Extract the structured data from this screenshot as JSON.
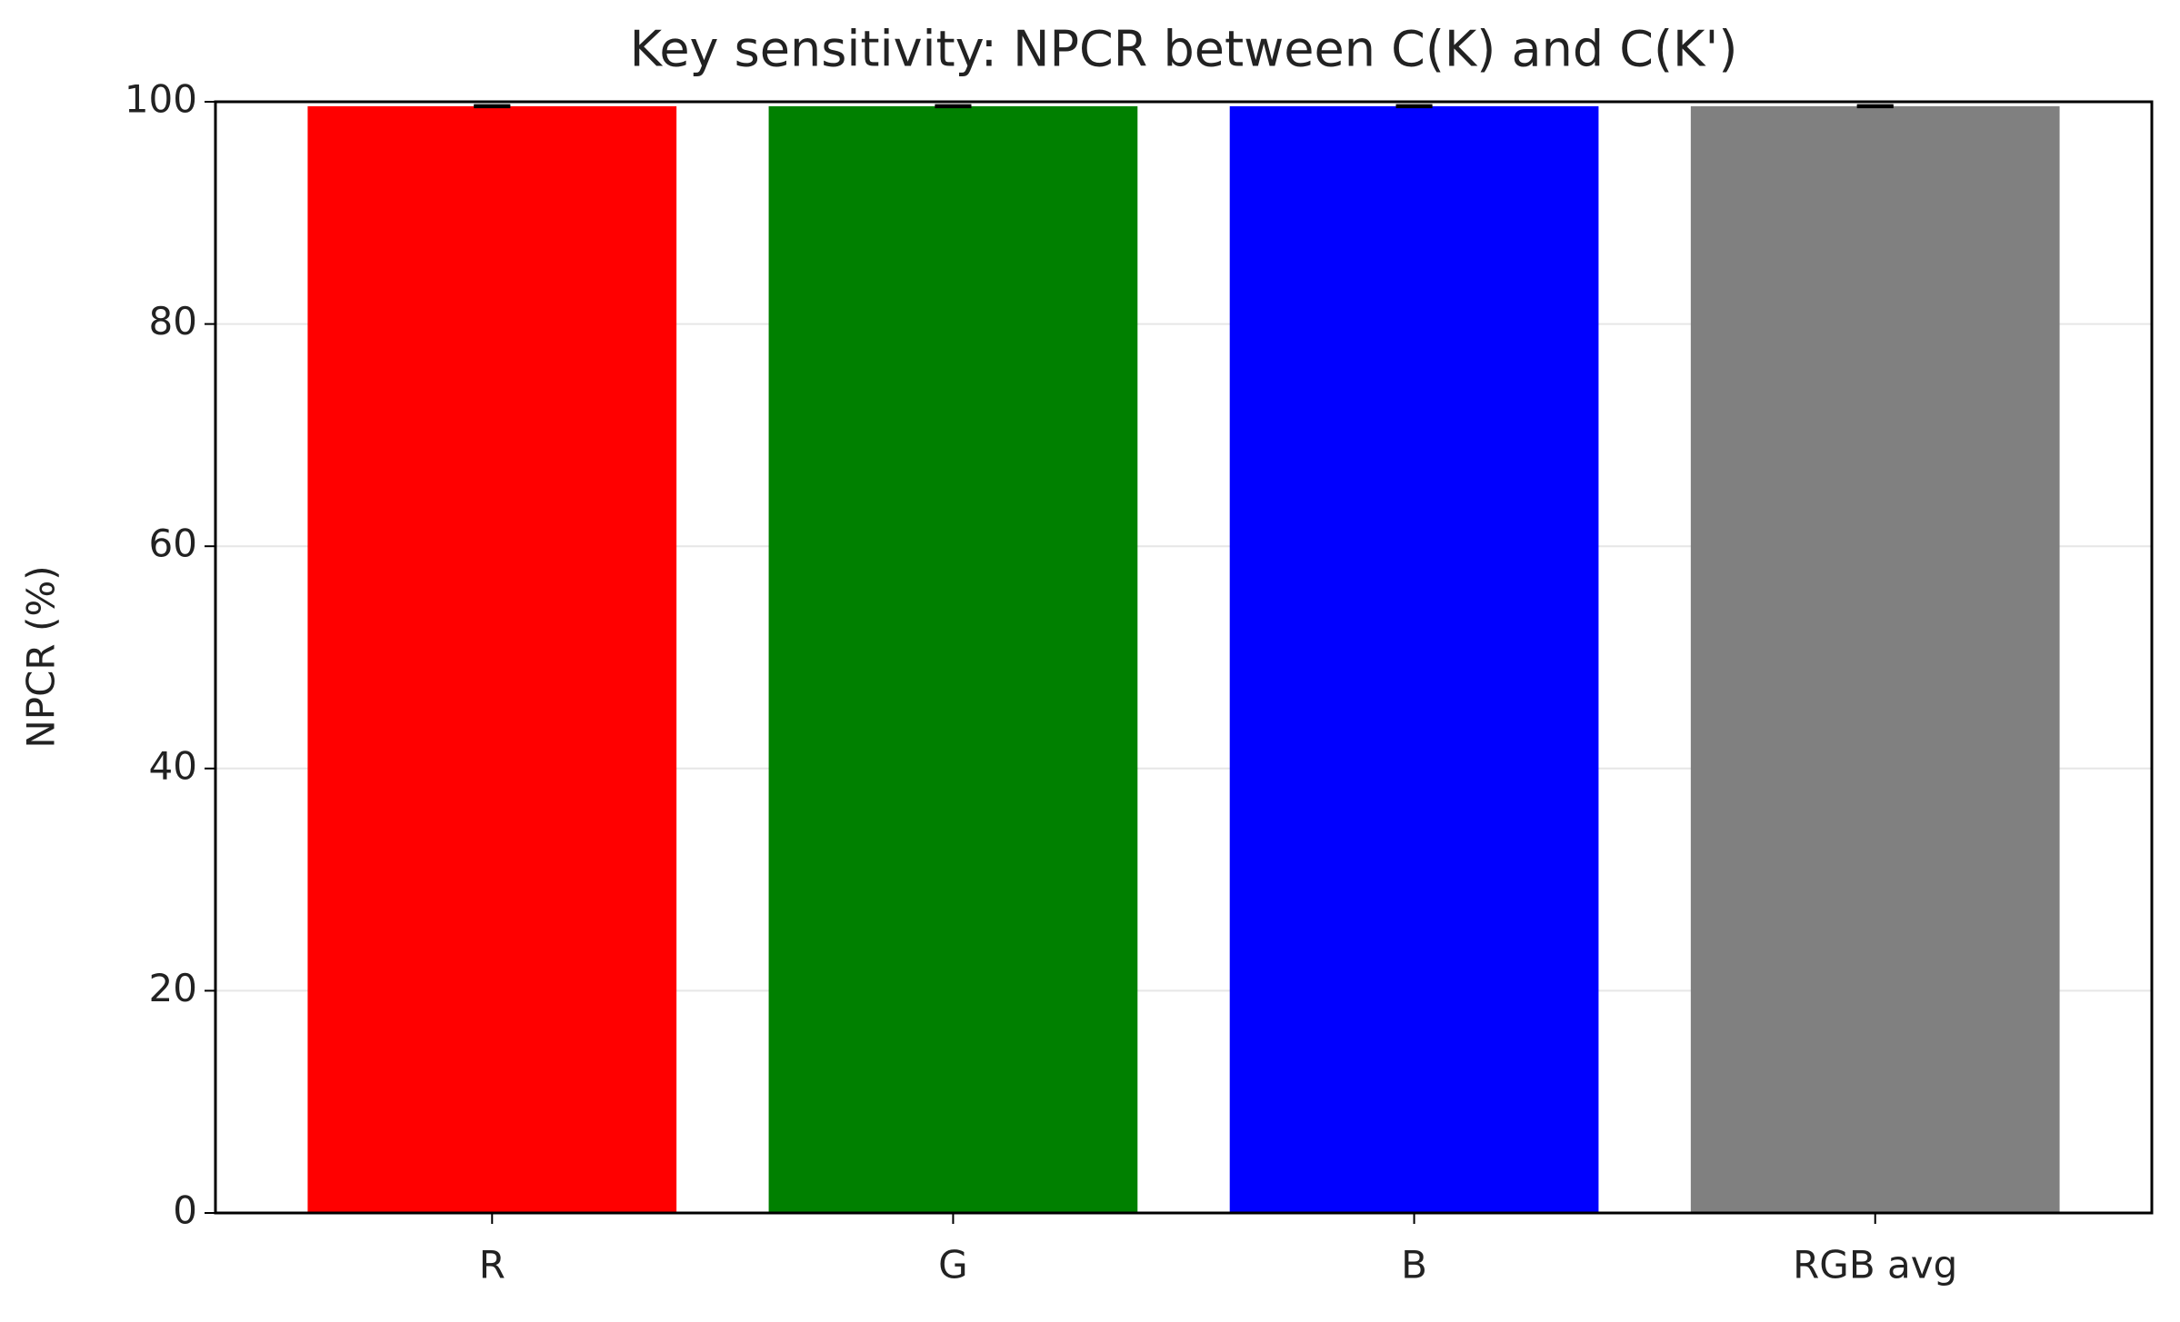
{
  "chart_data": {
    "type": "bar",
    "title": "Key sensitivity: NPCR between C(K) and C(K')",
    "y_label": "NPCR (%)",
    "categories": [
      "R",
      "G",
      "B",
      "RGB avg"
    ],
    "values": [
      99.6,
      99.6,
      99.6,
      99.6
    ],
    "errors": [
      0.02,
      0.02,
      0.02,
      0.02
    ],
    "colors": [
      "#ff0000",
      "#008000",
      "#0000ff",
      "#808080"
    ],
    "ylim": [
      0,
      100
    ],
    "yticks": [
      0,
      20,
      40,
      60,
      80,
      100
    ],
    "grid": true
  }
}
